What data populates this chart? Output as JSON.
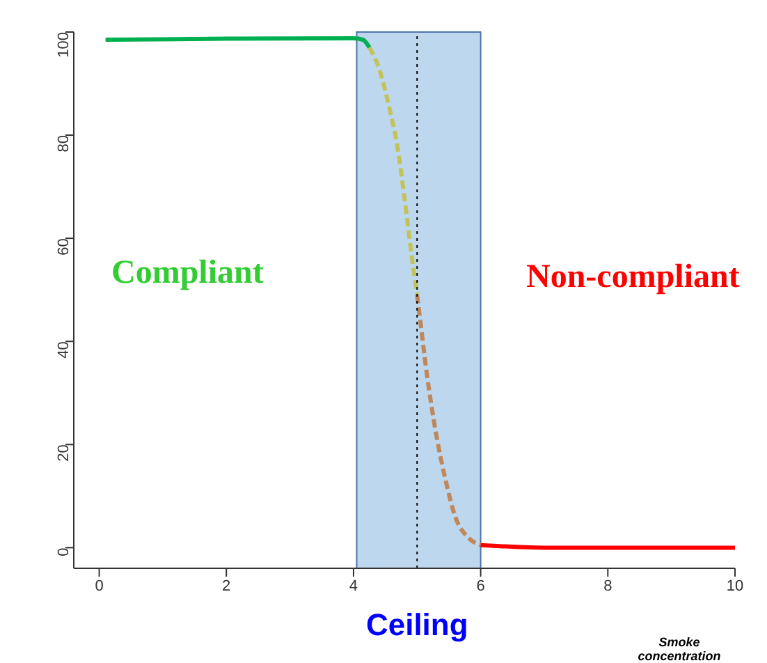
{
  "chart_data": {
    "type": "line",
    "xlabel": "Smoke concentration",
    "xlim": [
      -0.4,
      10
    ],
    "xticks": [
      0,
      2,
      4,
      6,
      8,
      10
    ],
    "ylim": [
      -4,
      100
    ],
    "yticks": [
      0,
      20,
      40,
      60,
      80,
      100
    ],
    "series": [
      {
        "color": "#00b050",
        "line_style": "solid",
        "x": [
          0.1,
          2,
          4,
          4.15,
          4.25
        ],
        "values": [
          98.5,
          98.7,
          98.8,
          98.5,
          97
        ]
      },
      {
        "color": "#c3c35a",
        "line_style": "dashed",
        "x": [
          4.25,
          4.4,
          4.55,
          4.7,
          4.8,
          4.9,
          5.0
        ],
        "values": [
          97,
          93,
          86,
          77,
          68,
          58,
          49
        ]
      },
      {
        "color": "#c0875a",
        "line_style": "dashed",
        "x": [
          5.0,
          5.05,
          5.15,
          5.3,
          5.45,
          5.6,
          5.8,
          6.0
        ],
        "values": [
          49,
          44,
          34,
          22,
          13,
          6,
          2,
          0.5
        ]
      },
      {
        "color": "#ff0000",
        "line_style": "solid",
        "x": [
          6,
          6.3,
          7,
          10
        ],
        "values": [
          0.5,
          0.3,
          0,
          0
        ]
      }
    ],
    "bands": [
      {
        "axis": "x",
        "from": 4.05,
        "to": 6,
        "color": "#bdd7ee"
      }
    ],
    "ref_lines": [
      {
        "axis": "x",
        "value": 5,
        "label": "Ceiling",
        "color": "#000000",
        "line_style": "dotted"
      }
    ],
    "annotations": [
      "Compliant",
      "Non-compliant"
    ]
  }
}
